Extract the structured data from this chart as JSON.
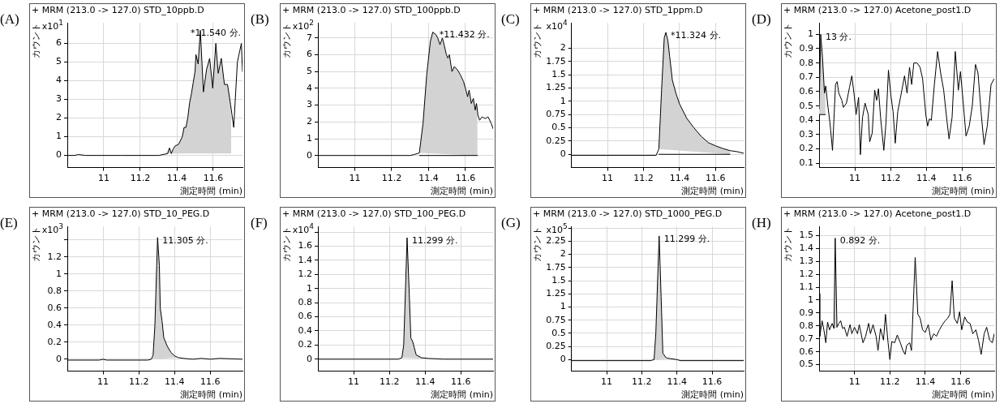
{
  "chart_data": [
    {
      "type": "line",
      "title": "+ MRM (213.0 -> 127.0) STD_10ppb.D",
      "xlabel": "測定時間 (min)",
      "ylabel": "カウント",
      "annotations": [
        "(A)",
        "x10$^{1}$",
        {
          "text": "*11.540 分.",
          "x": 11.54,
          "y": 6.7
        }
      ],
      "xlim": [
        10.8,
        11.76
      ],
      "xticks": [
        11,
        11.2,
        11.4,
        11.6
      ],
      "ylim": [
        -0.65,
        7.1
      ],
      "yticks": [
        0,
        1,
        2,
        3,
        4,
        5,
        6
      ],
      "grid": true,
      "series": [
        {
          "type": "line",
          "color": "#000000",
          "x": [
            10.8,
            10.84,
            10.86,
            10.9,
            11.0,
            11.1,
            11.2,
            11.3,
            11.35,
            11.36,
            11.37,
            11.38,
            11.39,
            11.41,
            11.43,
            11.44,
            11.45,
            11.46,
            11.47,
            11.48,
            11.49,
            11.5,
            11.505,
            11.517,
            11.529,
            11.546,
            11.563,
            11.58,
            11.597,
            11.614,
            11.627,
            11.644,
            11.661,
            11.678,
            11.695,
            11.712,
            11.732,
            11.745,
            11.754,
            11.76
          ],
          "values": [
            0,
            0,
            0.05,
            0,
            0,
            0,
            0,
            0,
            0.1,
            0.4,
            0.1,
            0.35,
            0.5,
            0.6,
            1.0,
            1.5,
            1.5,
            2.0,
            2.8,
            3.3,
            3.9,
            4.5,
            5.4,
            4.9,
            6.7,
            3.4,
            4.6,
            5.2,
            3.6,
            6.0,
            4.4,
            5.2,
            3.8,
            3.8,
            2.7,
            1.5,
            5.0,
            5.6,
            6.0,
            4.5
          ]
        },
        {
          "type": "area",
          "color": "#d3d3d3",
          "x": [
            11.34,
            11.36,
            11.37,
            11.38,
            11.39,
            11.41,
            11.43,
            11.44,
            11.45,
            11.46,
            11.47,
            11.48,
            11.49,
            11.5,
            11.505,
            11.517,
            11.529,
            11.546,
            11.563,
            11.58,
            11.597,
            11.614,
            11.627,
            11.644,
            11.661,
            11.678,
            11.695,
            11.698,
            11.698
          ],
          "values": [
            0.1,
            0.4,
            0.1,
            0.35,
            0.5,
            0.6,
            1.0,
            1.5,
            1.5,
            2.0,
            2.8,
            3.3,
            3.9,
            4.5,
            5.4,
            4.9,
            6.7,
            3.4,
            4.6,
            5.2,
            3.6,
            6.0,
            4.4,
            5.2,
            3.8,
            3.8,
            2.7,
            1.6,
            0.1
          ]
        }
      ]
    },
    {
      "type": "line",
      "title": "+ MRM (213.0 -> 127.0) STD_100ppb.D",
      "xlabel": "測定時間 (min)",
      "ylabel": "カウント",
      "annotations": [
        "(B)",
        "x10$^{2}$",
        {
          "text": "*11.432 分.",
          "x": 11.432,
          "y": 7.35
        }
      ],
      "xlim": [
        10.8,
        11.75
      ],
      "xticks": [
        11,
        11.2,
        11.4,
        11.6
      ],
      "ylim": [
        -0.72,
        7.9
      ],
      "yticks": [
        0,
        1,
        2,
        3,
        4,
        5,
        6,
        7
      ],
      "grid": true,
      "series": [
        {
          "type": "line",
          "color": "#000000",
          "x": [
            10.8,
            11.3,
            11.32,
            11.35,
            11.37,
            11.39,
            11.41,
            11.423,
            11.44,
            11.45,
            11.462,
            11.475,
            11.48,
            11.497,
            11.505,
            11.513,
            11.527,
            11.54,
            11.557,
            11.573,
            11.59,
            11.6,
            11.612,
            11.62,
            11.632,
            11.643,
            11.653,
            11.66,
            11.668,
            11.677,
            11.69,
            11.707,
            11.723,
            11.74,
            11.75
          ],
          "values": [
            0,
            0,
            0.05,
            0.15,
            1.9,
            4.8,
            6.8,
            7.35,
            7.2,
            7.0,
            6.6,
            7.0,
            6.8,
            6.0,
            5.8,
            6.0,
            5.0,
            5.3,
            5.1,
            4.8,
            4.4,
            4.0,
            3.5,
            3.9,
            3.1,
            3.4,
            2.7,
            3.1,
            2.4,
            2.1,
            2.3,
            2.2,
            2.3,
            1.9,
            1.6
          ]
        },
        {
          "type": "line",
          "color": "#000000",
          "x": [
            11.35,
            11.665
          ],
          "values": [
            0,
            0
          ]
        },
        {
          "type": "area",
          "color": "#d3d3d3",
          "x": [
            11.35,
            11.37,
            11.39,
            11.41,
            11.423,
            11.44,
            11.45,
            11.462,
            11.475,
            11.48,
            11.497,
            11.505,
            11.513,
            11.527,
            11.54,
            11.557,
            11.573,
            11.59,
            11.6,
            11.612,
            11.62,
            11.632,
            11.643,
            11.653,
            11.66,
            11.665,
            11.665
          ],
          "values": [
            0.15,
            1.9,
            4.8,
            6.8,
            7.35,
            7.2,
            7.0,
            6.6,
            7.0,
            6.8,
            6.0,
            5.8,
            6.0,
            5.0,
            5.3,
            5.1,
            4.8,
            4.4,
            4.0,
            3.5,
            3.9,
            3.1,
            3.4,
            2.7,
            3.1,
            2.8,
            0
          ]
        }
      ]
    },
    {
      "type": "line",
      "title": "+ MRM (213.0 -> 127.0) STD_1ppm.D",
      "xlabel": "測定時間 (min)",
      "ylabel": "カウント",
      "annotations": [
        "(C)",
        "x10$^{4}$",
        {
          "text": "*11.324 分.",
          "x": 11.324,
          "y": 2.3
        }
      ],
      "xlim": [
        10.8,
        11.756
      ],
      "xticks": [
        11,
        11.2,
        11.4,
        11.6
      ],
      "ylim": [
        -0.25,
        2.48
      ],
      "yticks": [
        0,
        0.25,
        0.5,
        0.75,
        1,
        1.25,
        1.5,
        1.75,
        2
      ],
      "grid": true,
      "series": [
        {
          "type": "line",
          "color": "#000000",
          "x": [
            10.8,
            11.27,
            11.285,
            11.3,
            11.315,
            11.324,
            11.335,
            11.345,
            11.36,
            11.38,
            11.4,
            11.44,
            11.48,
            11.52,
            11.56,
            11.6,
            11.64,
            11.68,
            11.72,
            11.756
          ],
          "values": [
            -0.02,
            -0.02,
            0.1,
            1.2,
            2.2,
            2.3,
            2.15,
            1.85,
            1.4,
            1.15,
            0.95,
            0.68,
            0.5,
            0.34,
            0.22,
            0.16,
            0.11,
            0.07,
            0.05,
            0.02
          ]
        },
        {
          "type": "line",
          "color": "#000000",
          "x": [
            11.285,
            11.68
          ],
          "values": [
            0,
            0
          ]
        },
        {
          "type": "area",
          "color": "#d3d3d3",
          "x": [
            11.285,
            11.3,
            11.315,
            11.324,
            11.335,
            11.345,
            11.36,
            11.38,
            11.4,
            11.44,
            11.48,
            11.52,
            11.56,
            11.6,
            11.64,
            11.68,
            11.68
          ],
          "values": [
            0.1,
            1.2,
            2.2,
            2.3,
            2.15,
            1.85,
            1.4,
            1.15,
            0.95,
            0.68,
            0.5,
            0.34,
            0.22,
            0.16,
            0.11,
            0.07,
            0
          ]
        }
      ]
    },
    {
      "type": "line",
      "title": "+ MRM (213.0 -> 127.0) Acetone_post1.D",
      "xlabel": "測定時間 (min)",
      "ylabel": "カウント",
      "annotations": [
        "(D)",
        {
          "text": "13 分.",
          "x": 10.809,
          "y": 1.0
        }
      ],
      "xlim": [
        10.8,
        11.78
      ],
      "xticks": [
        11,
        11.2,
        11.4,
        11.6
      ],
      "ylim": [
        0.07,
        1.08
      ],
      "yticks": [
        0.1,
        0.2,
        0.3,
        0.4,
        0.5,
        0.6,
        0.7,
        0.8,
        0.9,
        1
      ],
      "grid": true,
      "series": [
        {
          "type": "line",
          "color": "#000000",
          "x": [
            10.8,
            10.809,
            10.819,
            10.83,
            10.837,
            10.849,
            10.861,
            10.875,
            10.892,
            10.901,
            10.91,
            10.927,
            10.936,
            10.953,
            10.97,
            10.983,
            10.997,
            11.007,
            11.021,
            11.031,
            11.043,
            11.057,
            11.075,
            11.083,
            11.097,
            11.111,
            11.122,
            11.132,
            11.144,
            11.162,
            11.174,
            11.188,
            11.202,
            11.214,
            11.226,
            11.24,
            11.257,
            11.278,
            11.292,
            11.306,
            11.318,
            11.33,
            11.348,
            11.365,
            11.379,
            11.397,
            11.407,
            11.417,
            11.428,
            11.445,
            11.463,
            11.48,
            11.497,
            11.515,
            11.527,
            11.544,
            11.562,
            11.579,
            11.591,
            11.605,
            11.622,
            11.64,
            11.657,
            11.675,
            11.689,
            11.706,
            11.723,
            11.741,
            11.762,
            11.78
          ],
          "values": [
            0.48,
            1.0,
            0.84,
            0.59,
            0.64,
            0.5,
            0.38,
            0.19,
            0.65,
            0.67,
            0.59,
            0.54,
            0.49,
            0.52,
            0.63,
            0.71,
            0.57,
            0.44,
            0.56,
            0.16,
            0.42,
            0.52,
            0.44,
            0.25,
            0.31,
            0.61,
            0.54,
            0.62,
            0.42,
            0.19,
            0.38,
            0.75,
            0.57,
            0.46,
            0.24,
            0.46,
            0.57,
            0.71,
            0.59,
            0.77,
            0.65,
            0.8,
            0.8,
            0.77,
            0.69,
            0.44,
            0.36,
            0.41,
            0.4,
            0.65,
            0.88,
            0.73,
            0.61,
            0.4,
            0.27,
            0.42,
            0.88,
            0.61,
            0.74,
            0.54,
            0.29,
            0.36,
            0.5,
            0.79,
            0.73,
            0.46,
            0.23,
            0.36,
            0.65,
            0.69
          ]
        },
        {
          "type": "line",
          "color": "#000000",
          "x": [
            10.8,
            10.835
          ],
          "values": [
            0.44,
            0.44
          ]
        },
        {
          "type": "area",
          "color": "#d3d3d3",
          "x": [
            10.8,
            10.8,
            10.809,
            10.819,
            10.83,
            10.835,
            10.835
          ],
          "values": [
            0.44,
            0.48,
            1.0,
            0.84,
            0.59,
            0.62,
            0.44
          ]
        }
      ]
    },
    {
      "type": "line",
      "title": "+ MRM (213.0 -> 127.0) STD_10_PEG.D",
      "xlabel": "測定時間 (min)",
      "ylabel": "カウント",
      "annotations": [
        "(E)",
        "x10$^{3}$",
        {
          "text": "11.305 分.",
          "x": 11.305,
          "y": 1.43
        }
      ],
      "xlim": [
        10.8,
        11.78
      ],
      "xticks": [
        11,
        11.2,
        11.4,
        11.6
      ],
      "ylim": [
        -0.14,
        1.56
      ],
      "yticks": [
        0,
        0.2,
        0.4,
        0.6,
        0.8,
        1,
        1.2,
        {
          "value": 1.4,
          "label": null
        }
      ],
      "grid": true,
      "series": [
        {
          "type": "line",
          "color": "#000000",
          "x": [
            10.8,
            10.98,
            11.0,
            11.02,
            11.25,
            11.27,
            11.28,
            11.29,
            11.3,
            11.305,
            11.315,
            11.32,
            11.33,
            11.34,
            11.36,
            11.38,
            11.4,
            11.42,
            11.45,
            11.5,
            11.55,
            11.6,
            11.65,
            11.78
          ],
          "values": [
            -0.01,
            -0.01,
            0.0,
            -0.01,
            -0.01,
            0.0,
            0.05,
            0.4,
            1.1,
            1.43,
            1.1,
            0.6,
            0.45,
            0.25,
            0.15,
            0.08,
            0.04,
            0.02,
            0.01,
            0,
            0.01,
            0,
            0.01,
            0
          ]
        },
        {
          "type": "area",
          "color": "#d3d3d3",
          "x": [
            11.275,
            11.28,
            11.29,
            11.3,
            11.305,
            11.315,
            11.32,
            11.33,
            11.34,
            11.36,
            11.38,
            11.4,
            11.42
          ],
          "values": [
            0,
            0.05,
            0.4,
            1.1,
            1.43,
            1.1,
            0.6,
            0.45,
            0.25,
            0.15,
            0.08,
            0.04,
            0.02
          ]
        }
      ]
    },
    {
      "type": "line",
      "title": "+ MRM (213.0 -> 127.0) STD_100_PEG.D",
      "xlabel": "測定時間 (min)",
      "ylabel": "カウント",
      "annotations": [
        "(F)",
        "x10$^{4}$",
        {
          "text": "11.299 分.",
          "x": 11.299,
          "y": 1.72
        }
      ],
      "xlim": [
        10.8,
        11.78
      ],
      "xticks": [
        11,
        11.2,
        11.4,
        11.6
      ],
      "ylim": [
        -0.17,
        1.88
      ],
      "yticks": [
        0,
        0.2,
        0.4,
        0.6,
        0.8,
        1,
        1.2,
        1.4,
        1.6,
        {
          "value": 1.8,
          "label": null
        }
      ],
      "grid": true,
      "series": [
        {
          "type": "line",
          "color": "#000000",
          "x": [
            10.8,
            11.25,
            11.27,
            11.28,
            11.29,
            11.299,
            11.31,
            11.32,
            11.33,
            11.35,
            11.38,
            11.42,
            11.5,
            11.78
          ],
          "values": [
            0,
            0,
            0.02,
            0.2,
            1.0,
            1.72,
            1.0,
            0.3,
            0.25,
            0.06,
            0.02,
            0.01,
            0,
            0
          ]
        },
        {
          "type": "area",
          "color": "#d3d3d3",
          "x": [
            11.27,
            11.28,
            11.29,
            11.299,
            11.31,
            11.32,
            11.33,
            11.35,
            11.38,
            11.42
          ],
          "values": [
            0.02,
            0.2,
            1.0,
            1.72,
            1.0,
            0.3,
            0.25,
            0.06,
            0.02,
            0.01
          ]
        }
      ]
    },
    {
      "type": "line",
      "title": "+ MRM (213.0 -> 127.0) STD_1000_PEG.D",
      "xlabel": "測定時間 (min)",
      "ylabel": "カウント",
      "annotations": [
        "(G)",
        "x10$^{5}$",
        {
          "text": "11.299 分.",
          "x": 11.299,
          "y": 2.35
        }
      ],
      "xlim": [
        10.8,
        11.78
      ],
      "xticks": [
        11,
        11.2,
        11.4,
        11.6
      ],
      "ylim": [
        -0.22,
        2.53
      ],
      "yticks": [
        0,
        0.25,
        0.5,
        0.75,
        1,
        1.25,
        1.5,
        1.75,
        2,
        2.25,
        {
          "value": 2.5,
          "label": null
        }
      ],
      "grid": true,
      "series": [
        {
          "type": "line",
          "color": "#000000",
          "x": [
            10.8,
            11.25,
            11.27,
            11.28,
            11.29,
            11.299,
            11.31,
            11.32,
            11.34,
            11.36,
            11.4,
            11.42,
            11.78
          ],
          "values": [
            -0.02,
            -0.02,
            0,
            0.5,
            1.5,
            2.35,
            1.2,
            0.12,
            0.03,
            0.02,
            0,
            -0.02,
            -0.02
          ]
        },
        {
          "type": "area",
          "color": "#d3d3d3",
          "x": [
            11.27,
            11.28,
            11.29,
            11.299,
            11.31,
            11.32,
            11.34,
            11.36
          ],
          "values": [
            0,
            0.5,
            1.5,
            2.35,
            1.2,
            0.12,
            0.03,
            0.02
          ]
        }
      ]
    },
    {
      "type": "line",
      "title": "+ MRM (213.0 -> 127.0) Acetone_post1.D",
      "xlabel": "測定時間 (min)",
      "ylabel": "カウント",
      "annotations": [
        "(H)",
        {
          "text": "0.892 分.",
          "x": 10.891,
          "y": 1.48
        }
      ],
      "xlim": [
        10.8,
        11.79
      ],
      "xticks": [
        11,
        11.2,
        11.4,
        11.6
      ],
      "ylim": [
        0.45,
        1.57
      ],
      "yticks": [
        0.5,
        0.6,
        0.7,
        0.8,
        0.9,
        1,
        1.1,
        1.2,
        1.3,
        1.4,
        1.5
      ],
      "grid": true,
      "series": [
        {
          "type": "line",
          "color": "#000000",
          "x": [
            10.8,
            10.804,
            10.817,
            10.827,
            10.838,
            10.848,
            10.859,
            10.874,
            10.884,
            10.891,
            10.901,
            10.912,
            10.922,
            10.933,
            10.943,
            10.958,
            10.975,
            10.985,
            11.0,
            11.017,
            11.027,
            11.048,
            11.063,
            11.08,
            11.09,
            11.105,
            11.122,
            11.133,
            11.147,
            11.164,
            11.175,
            11.19,
            11.2,
            11.211,
            11.227,
            11.242,
            11.259,
            11.274,
            11.286,
            11.295,
            11.312,
            11.322,
            11.343,
            11.358,
            11.371,
            11.385,
            11.4,
            11.417,
            11.432,
            11.448,
            11.463,
            11.48,
            11.497,
            11.512,
            11.527,
            11.539,
            11.552,
            11.564,
            11.581,
            11.594,
            11.606,
            11.623,
            11.638,
            11.653,
            11.669,
            11.686,
            11.701,
            11.716,
            11.733,
            11.747,
            11.764,
            11.779,
            11.79
          ],
          "values": [
            1.05,
            0.72,
            0.84,
            0.77,
            0.67,
            0.83,
            0.77,
            0.82,
            0.78,
            1.48,
            0.79,
            0.82,
            0.84,
            0.78,
            0.79,
            0.72,
            0.81,
            0.74,
            0.79,
            0.74,
            0.81,
            0.67,
            0.72,
            0.82,
            0.74,
            0.81,
            0.72,
            0.61,
            0.78,
            0.69,
            0.89,
            0.67,
            0.54,
            0.68,
            0.67,
            0.73,
            0.67,
            0.61,
            0.58,
            0.65,
            0.67,
            0.61,
            1.33,
            0.89,
            0.86,
            0.77,
            0.75,
            0.81,
            0.69,
            0.74,
            0.72,
            0.77,
            0.81,
            0.84,
            0.86,
            0.89,
            1.15,
            0.86,
            0.82,
            0.91,
            0.77,
            0.87,
            0.83,
            0.82,
            0.74,
            0.77,
            0.69,
            0.58,
            0.74,
            0.79,
            0.69,
            0.67,
            0.74
          ]
        },
        {
          "type": "area",
          "color": "#d3d3d3",
          "x": [
            10.884,
            10.891,
            10.901
          ],
          "values": [
            0.78,
            1.48,
            0.79
          ]
        }
      ]
    }
  ]
}
